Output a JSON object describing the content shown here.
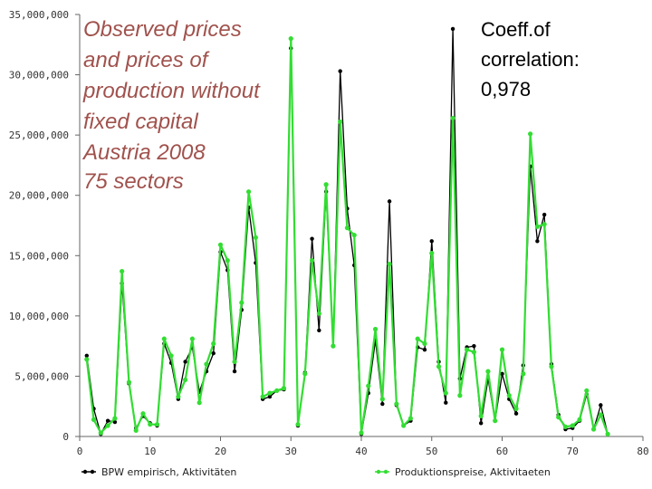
{
  "chart_data": {
    "type": "line",
    "title_lines": [
      "Observed prices",
      "and prices of",
      "production without",
      "fixed capital",
      "Austria 2008",
      "75 sectors"
    ],
    "annotation_lines": [
      "Coeff.of",
      "correlation:",
      "0,978"
    ],
    "xlim": [
      0,
      80
    ],
    "ylim": [
      0,
      35000000
    ],
    "x_ticks": [
      0,
      10,
      20,
      30,
      40,
      50,
      60,
      70,
      80
    ],
    "y_ticks": [
      0,
      5000000,
      10000000,
      15000000,
      20000000,
      25000000,
      30000000,
      35000000
    ],
    "x_tick_labels": [
      "0",
      "10",
      "20",
      "30",
      "40",
      "50",
      "60",
      "70",
      "80"
    ],
    "y_tick_labels": [
      "0",
      "5,000,000",
      "10,000,000",
      "15,000,000",
      "20,000,000",
      "25,000,000",
      "30,000,000",
      "35,000,000"
    ],
    "x": [
      1,
      2,
      3,
      4,
      5,
      6,
      7,
      8,
      9,
      10,
      11,
      12,
      13,
      14,
      15,
      16,
      17,
      18,
      19,
      20,
      21,
      22,
      23,
      24,
      25,
      26,
      27,
      28,
      29,
      30,
      31,
      32,
      33,
      34,
      35,
      36,
      37,
      38,
      39,
      40,
      41,
      42,
      43,
      44,
      45,
      46,
      47,
      48,
      49,
      50,
      51,
      52,
      53,
      54,
      55,
      56,
      57,
      58,
      59,
      60,
      61,
      62,
      63,
      64,
      65,
      66,
      67,
      68,
      69,
      70,
      71,
      72,
      73,
      74,
      75
    ],
    "series": [
      {
        "name": "BPW empirisch, Aktivitäten",
        "color": "#000000",
        "values": [
          6700000,
          2300000,
          200000,
          1300000,
          1200000,
          12700000,
          4400000,
          700000,
          1700000,
          1100000,
          900000,
          7700000,
          6100000,
          3100000,
          6200000,
          7400000,
          3700000,
          5400000,
          6900000,
          15300000,
          13800000,
          5400000,
          10500000,
          19000000,
          14400000,
          3100000,
          3300000,
          3800000,
          3900000,
          32200000,
          900000,
          5300000,
          16400000,
          8800000,
          20300000,
          7500000,
          30300000,
          18900000,
          14200000,
          200000,
          3600000,
          8000000,
          2700000,
          19500000,
          2600000,
          900000,
          1300000,
          7400000,
          7200000,
          16200000,
          6200000,
          2800000,
          33800000,
          4800000,
          7400000,
          7500000,
          1100000,
          4800000,
          1300000,
          5200000,
          3100000,
          1900000,
          5900000,
          22400000,
          16200000,
          18400000,
          6000000,
          1800000,
          600000,
          700000,
          1300000,
          3500000,
          600000,
          2600000,
          200000
        ]
      },
      {
        "name": "Produktionspreise, Aktivitaeten",
        "color": "#33dd33",
        "values": [
          6400000,
          1400000,
          300000,
          900000,
          1500000,
          13700000,
          4500000,
          500000,
          1900000,
          1000000,
          1000000,
          8100000,
          6700000,
          3300000,
          4700000,
          8100000,
          2800000,
          6000000,
          7700000,
          15900000,
          14600000,
          6200000,
          11100000,
          20300000,
          16500000,
          3300000,
          3600000,
          3800000,
          4000000,
          33000000,
          1000000,
          5200000,
          14600000,
          10200000,
          20900000,
          7500000,
          26100000,
          17300000,
          16700000,
          300000,
          4200000,
          8900000,
          3100000,
          14300000,
          2700000,
          900000,
          1500000,
          8100000,
          7700000,
          15200000,
          5800000,
          3600000,
          26400000,
          3400000,
          7200000,
          7000000,
          1700000,
          5400000,
          1300000,
          7200000,
          3400000,
          2300000,
          5200000,
          25100000,
          17400000,
          17600000,
          5800000,
          1600000,
          800000,
          900000,
          1400000,
          3800000,
          600000,
          1800000,
          200000
        ]
      }
    ],
    "legend_position": "bottom",
    "grid": false
  }
}
